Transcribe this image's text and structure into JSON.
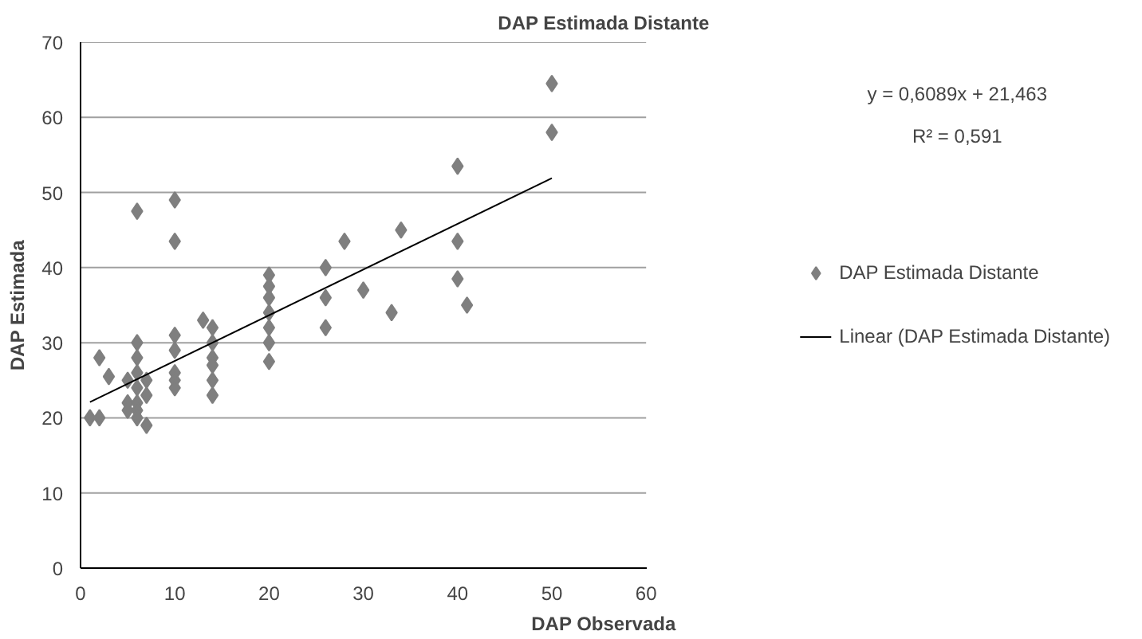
{
  "chart_data": {
    "type": "scatter",
    "title": "DAP Estimada Distante",
    "xlabel": "DAP Observada",
    "ylabel": "DAP Estimada",
    "xlim": [
      0,
      60
    ],
    "xticks": [
      0,
      10,
      20,
      30,
      40,
      50,
      60
    ],
    "ylim": [
      0,
      70
    ],
    "yticks": [
      0,
      10,
      20,
      30,
      40,
      50,
      60,
      70
    ],
    "grid": "y",
    "legend": "right",
    "marker": "diamond",
    "annotations": [
      "y = 0,6089x + 21,463",
      "R² = 0,591"
    ],
    "series": [
      {
        "name": "DAP Estimada Distante",
        "color": "#7f7f7f",
        "x": [
          1,
          2,
          2,
          3,
          5,
          5,
          5,
          6,
          6,
          6,
          6,
          6,
          6,
          6,
          6,
          7,
          7,
          7,
          10,
          10,
          10,
          10,
          10,
          10,
          10,
          13,
          14,
          14,
          14,
          14,
          14,
          14,
          20,
          20,
          20,
          20,
          20,
          20,
          20,
          26,
          26,
          26,
          28,
          30,
          33,
          34,
          40,
          40,
          40,
          41,
          50,
          50
        ],
        "values": [
          20,
          20,
          28,
          25.5,
          25,
          22,
          21,
          47.5,
          30,
          28,
          26,
          24,
          22,
          21,
          20,
          19,
          23,
          25,
          49,
          43.5,
          31,
          29,
          26,
          25,
          24,
          33,
          32,
          30,
          28,
          27,
          25,
          23,
          39,
          37.5,
          36,
          34,
          32,
          30,
          27.5,
          40,
          36,
          32,
          43.5,
          37,
          34,
          45,
          53.5,
          43.5,
          38.5,
          35,
          64.5,
          58
        ]
      },
      {
        "name": "Linear (DAP Estimada Distante)",
        "color": "#000000",
        "type": "line",
        "marker": "none",
        "x": [
          1,
          50
        ],
        "values": [
          22.1,
          51.9
        ]
      }
    ]
  }
}
